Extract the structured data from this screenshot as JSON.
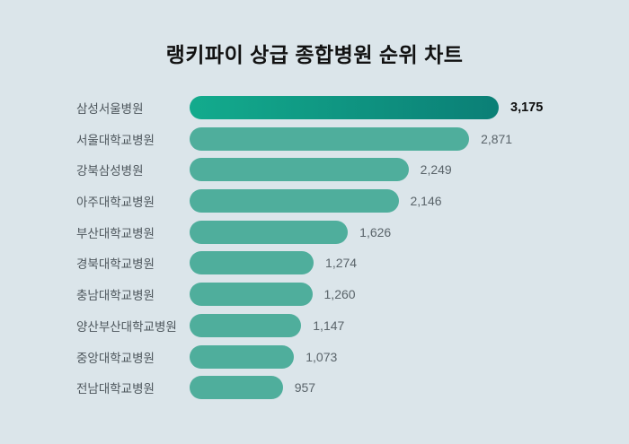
{
  "title": "랭키파이 상급 종합병원 순위 차트",
  "colors": {
    "background": "#dbe5ea",
    "bar": "#4fae9c",
    "leader_bar_gradient_start": "#13ab8d",
    "leader_bar_gradient_end": "#0b7f76",
    "label_text": "#4d565c",
    "value_text": "#5a646a",
    "leader_value_text": "#0d0d0d",
    "title_text": "#111111"
  },
  "chart_data": {
    "type": "bar",
    "orientation": "horizontal",
    "title": "랭키파이 상급 종합병원 순위 차트",
    "categories": [
      "삼성서울병원",
      "서울대학교병원",
      "강북삼성병원",
      "아주대학교병원",
      "부산대학교병원",
      "경북대학교병원",
      "충남대학교병원",
      "양산부산대학교병원",
      "중앙대학교병원",
      "전남대학교병원"
    ],
    "values": [
      3175,
      2871,
      2249,
      2146,
      1626,
      1274,
      1260,
      1147,
      1073,
      957
    ],
    "value_labels": [
      "3,175",
      "2,871",
      "2,249",
      "2,146",
      "1,626",
      "1,274",
      "1,260",
      "1,147",
      "1,073",
      "957"
    ],
    "xlim": [
      0,
      3175
    ],
    "grid": false,
    "legend": false,
    "highlight_index": 0
  }
}
